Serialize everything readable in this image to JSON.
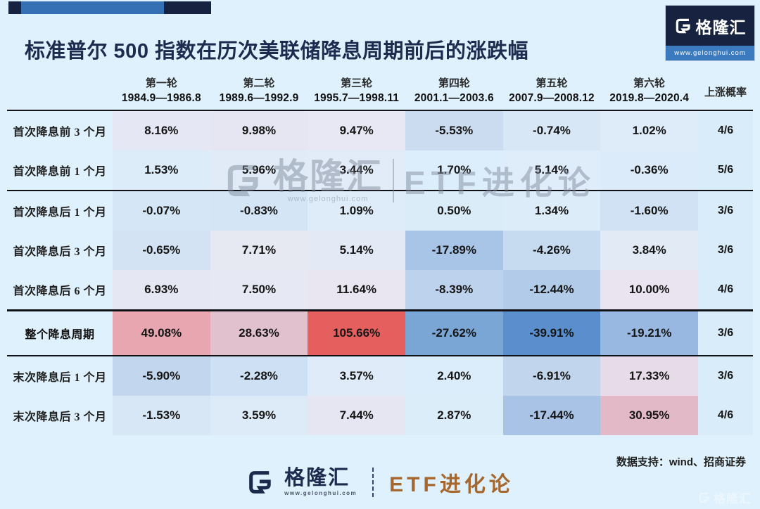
{
  "colors": {
    "page_bg": "#def1fc",
    "navy": "#16223f",
    "accent_blue": "#3570b4",
    "title_navy": "#1c2b4e",
    "etf_brown": "#a5672e",
    "prob_col_bg": "#d9ecf9",
    "gain_red": "#e55f5f",
    "loss_blue": "#5a8ecd"
  },
  "header": {
    "title": "标准普尔 500 指数在历次美联储降息周期前后的涨跌幅",
    "logo": {
      "g": "G",
      "brand": "格隆汇",
      "url": "www.gelonghui.com"
    }
  },
  "table": {
    "prob_header": "上涨概率",
    "columns": [
      {
        "round": "第一轮",
        "period": "1984.9—1986.8"
      },
      {
        "round": "第二轮",
        "period": "1989.6—1992.9"
      },
      {
        "round": "第三轮",
        "period": "1995.7—1998.11"
      },
      {
        "round": "第四轮",
        "period": "2001.1—2003.6"
      },
      {
        "round": "第五轮",
        "period": "2007.9—2008.12"
      },
      {
        "round": "第六轮",
        "period": "2019.8—2020.4"
      }
    ],
    "rows": [
      {
        "label": "首次降息前 3 个月",
        "bold": false,
        "hr_after": false,
        "cells": [
          {
            "v": "8.16%",
            "bg": "#e6e7f4"
          },
          {
            "v": "9.98%",
            "bg": "#e6e6f3"
          },
          {
            "v": "9.47%",
            "bg": "#e8e8f4"
          },
          {
            "v": "-5.53%",
            "bg": "#cbdcf1"
          },
          {
            "v": "-0.74%",
            "bg": "#d8e7f6"
          },
          {
            "v": "1.02%",
            "bg": "#deebf8"
          }
        ],
        "prob": "4/6"
      },
      {
        "label": "首次降息前 1 个月",
        "bold": false,
        "hr_after": true,
        "cells": [
          {
            "v": "1.53%",
            "bg": "#dcecf9"
          },
          {
            "v": "5.96%",
            "bg": "#e1ebf7"
          },
          {
            "v": "3.44%",
            "bg": "#e2ecf8"
          },
          {
            "v": "1.70%",
            "bg": "#dceefb"
          },
          {
            "v": "5.14%",
            "bg": "#dfecf9"
          },
          {
            "v": "-0.36%",
            "bg": "#dbebf9"
          }
        ],
        "prob": "5/6"
      },
      {
        "label": "首次降息后 1 个月",
        "bold": false,
        "hr_after": false,
        "cells": [
          {
            "v": "-0.07%",
            "bg": "#d5e6f6"
          },
          {
            "v": "-0.83%",
            "bg": "#d4e6f6"
          },
          {
            "v": "1.09%",
            "bg": "#deebf8"
          },
          {
            "v": "0.50%",
            "bg": "#dbecf9"
          },
          {
            "v": "1.34%",
            "bg": "#dcecf9"
          },
          {
            "v": "-1.60%",
            "bg": "#d0e2f3"
          }
        ],
        "prob": "3/6"
      },
      {
        "label": "首次降息后 3 个月",
        "bold": false,
        "hr_after": false,
        "cells": [
          {
            "v": "-0.65%",
            "bg": "#d3e3f4"
          },
          {
            "v": "7.71%",
            "bg": "#e6e8f2"
          },
          {
            "v": "5.14%",
            "bg": "#e4eaf5"
          },
          {
            "v": "-17.89%",
            "bg": "#a8c5e7"
          },
          {
            "v": "-4.26%",
            "bg": "#c6daf0"
          },
          {
            "v": "3.84%",
            "bg": "#e2eaf6"
          }
        ],
        "prob": "3/6"
      },
      {
        "label": "首次降息后 6 个月",
        "bold": false,
        "hr_after": true,
        "cells": [
          {
            "v": "6.93%",
            "bg": "#e5e8f3"
          },
          {
            "v": "7.50%",
            "bg": "#e6e9f3"
          },
          {
            "v": "11.64%",
            "bg": "#e9e6f2"
          },
          {
            "v": "-8.39%",
            "bg": "#bdd3ed"
          },
          {
            "v": "-12.44%",
            "bg": "#b2cbe9"
          },
          {
            "v": "10.00%",
            "bg": "#e9e4f0"
          }
        ],
        "prob": "4/6"
      },
      {
        "label": "整个降息周期",
        "bold": true,
        "hr_after": true,
        "cells": [
          {
            "v": "49.08%",
            "bg": "#e8a6b1"
          },
          {
            "v": "28.63%",
            "bg": "#e2c1ce"
          },
          {
            "v": "105.66%",
            "bg": "#e55f5f"
          },
          {
            "v": "-27.62%",
            "bg": "#7aa6d6"
          },
          {
            "v": "-39.91%",
            "bg": "#5a8ecd"
          },
          {
            "v": "-19.21%",
            "bg": "#99b8e1"
          }
        ],
        "prob": "3/6"
      },
      {
        "label": "末次降息后 1 个月",
        "bold": false,
        "hr_after": false,
        "cells": [
          {
            "v": "-5.90%",
            "bg": "#c2d6ee"
          },
          {
            "v": "-2.28%",
            "bg": "#cee0f3"
          },
          {
            "v": "3.57%",
            "bg": "#dfebf8"
          },
          {
            "v": "2.40%",
            "bg": "#dbedfa"
          },
          {
            "v": "-6.91%",
            "bg": "#c1d5ed"
          },
          {
            "v": "17.33%",
            "bg": "#e8dbe9"
          }
        ],
        "prob": "3/6"
      },
      {
        "label": "末次降息后 3 个月",
        "bold": false,
        "hr_after": false,
        "cells": [
          {
            "v": "-1.53%",
            "bg": "#d7e7f6"
          },
          {
            "v": "3.59%",
            "bg": "#ddeaf8"
          },
          {
            "v": "7.44%",
            "bg": "#e5e6f1"
          },
          {
            "v": "2.87%",
            "bg": "#dcedfa"
          },
          {
            "v": "-17.44%",
            "bg": "#a8c3e5"
          },
          {
            "v": "30.95%",
            "bg": "#e2b9c6"
          }
        ],
        "prob": "4/6"
      }
    ]
  },
  "watermark": {
    "g": "G",
    "brand": "格隆汇",
    "url": "www.gelonghui.com",
    "etf": "ETF进化论"
  },
  "footer": {
    "source": "数据支持：wind、招商证券",
    "g": "G",
    "brand": "格隆汇",
    "url": "www.gelonghui.com",
    "etf": "ETF进化论",
    "corner_brand": "格隆汇"
  },
  "chart_data": {
    "type": "table",
    "title": "标准普尔 500 指数在历次美联储降息周期前后的涨跌幅",
    "columns": [
      "第一轮 1984.9—1986.8",
      "第二轮 1989.6—1992.9",
      "第三轮 1995.7—1998.11",
      "第四轮 2001.1—2003.6",
      "第五轮 2007.9—2008.12",
      "第六轮 2019.8—2020.4",
      "上涨概率"
    ],
    "rows": [
      {
        "label": "首次降息前 3 个月",
        "values_pct": [
          8.16,
          9.98,
          9.47,
          -5.53,
          -0.74,
          1.02
        ],
        "win_rate": "4/6"
      },
      {
        "label": "首次降息前 1 个月",
        "values_pct": [
          1.53,
          5.96,
          3.44,
          1.7,
          5.14,
          -0.36
        ],
        "win_rate": "5/6"
      },
      {
        "label": "首次降息后 1 个月",
        "values_pct": [
          -0.07,
          -0.83,
          1.09,
          0.5,
          1.34,
          -1.6
        ],
        "win_rate": "3/6"
      },
      {
        "label": "首次降息后 3 个月",
        "values_pct": [
          -0.65,
          7.71,
          5.14,
          -17.89,
          -4.26,
          3.84
        ],
        "win_rate": "3/6"
      },
      {
        "label": "首次降息后 6 个月",
        "values_pct": [
          6.93,
          7.5,
          11.64,
          -8.39,
          -12.44,
          10.0
        ],
        "win_rate": "4/6"
      },
      {
        "label": "整个降息周期",
        "values_pct": [
          49.08,
          28.63,
          105.66,
          -27.62,
          -39.91,
          -19.21
        ],
        "win_rate": "3/6"
      },
      {
        "label": "末次降息后 1 个月",
        "values_pct": [
          -5.9,
          -2.28,
          3.57,
          2.4,
          -6.91,
          17.33
        ],
        "win_rate": "3/6"
      },
      {
        "label": "末次降息后 3 个月",
        "values_pct": [
          -1.53,
          3.59,
          7.44,
          2.87,
          -17.44,
          30.95
        ],
        "win_rate": "4/6"
      }
    ],
    "source": "数据支持：wind、招商证券",
    "color_coding": "red=gain, blue=loss, intensity by magnitude"
  }
}
